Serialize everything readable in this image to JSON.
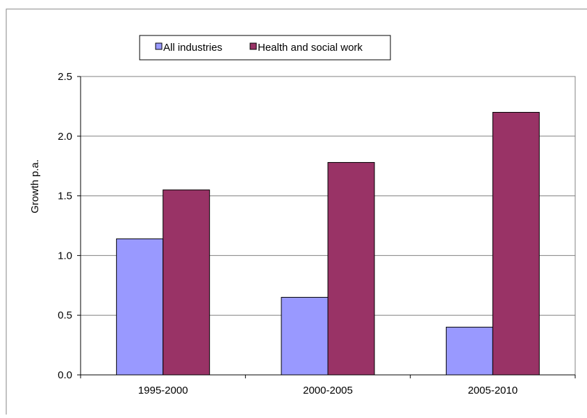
{
  "chart_data": {
    "type": "bar",
    "title": "",
    "xlabel": "",
    "ylabel": "Growth p.a.",
    "categories": [
      "1995-2000",
      "2000-2005",
      "2005-2010"
    ],
    "series": [
      {
        "name": "All industries",
        "values": [
          1.14,
          0.65,
          0.4
        ],
        "color": "#9999ff"
      },
      {
        "name": "Health and social work",
        "values": [
          1.55,
          1.78,
          2.2
        ],
        "color": "#993366"
      }
    ],
    "ylim": [
      0,
      2.5
    ],
    "yticks": [
      "0.0",
      "0.5",
      "1.0",
      "1.5",
      "2.0",
      "2.5"
    ],
    "grid": true,
    "legend_position": "top"
  }
}
